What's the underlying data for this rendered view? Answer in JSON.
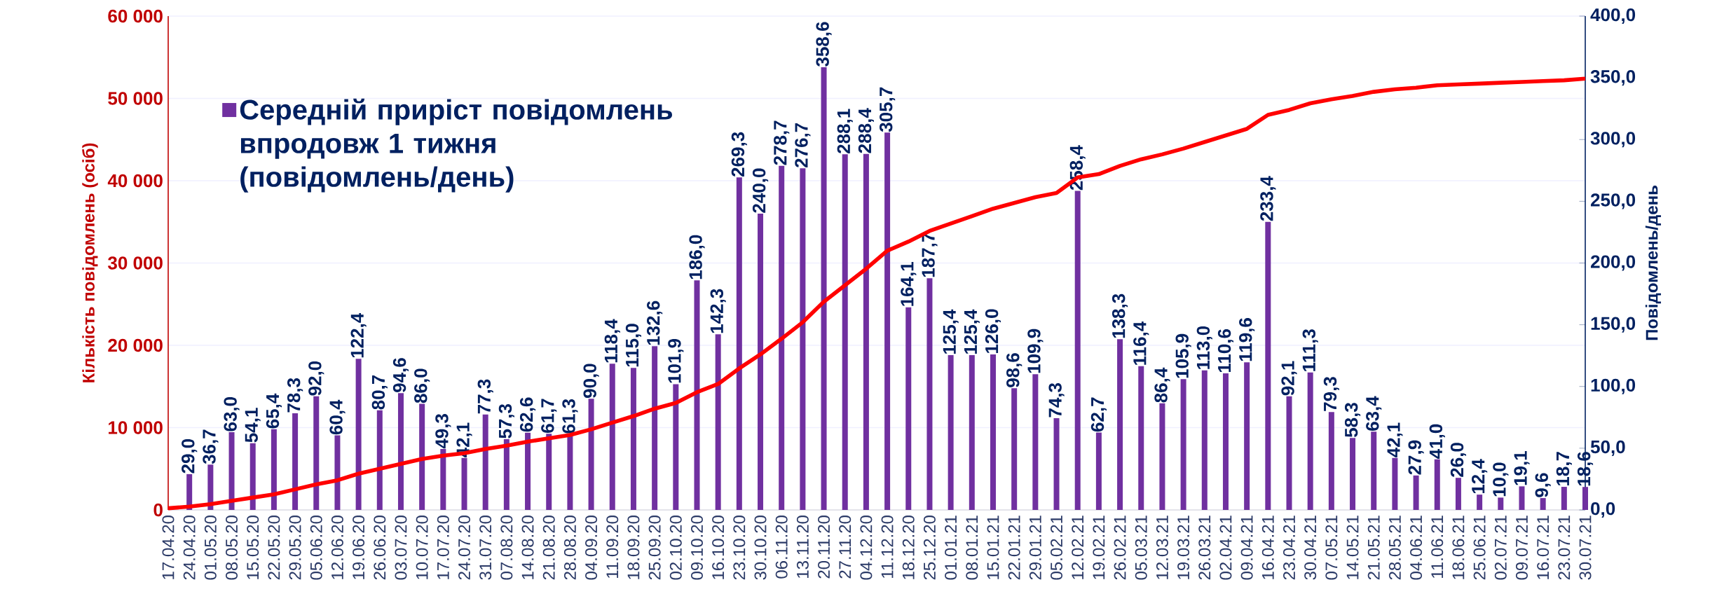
{
  "chart_data": {
    "type": "bar",
    "categories": [
      "17.04.20",
      "24.04.20",
      "01.05.20",
      "08.05.20",
      "15.05.20",
      "22.05.20",
      "29.05.20",
      "05.06.20",
      "12.06.20",
      "19.06.20",
      "26.06.20",
      "03.07.20",
      "10.07.20",
      "17.07.20",
      "24.07.20",
      "31.07.20",
      "07.08.20",
      "14.08.20",
      "21.08.20",
      "28.08.20",
      "04.09.20",
      "11.09.20",
      "18.09.20",
      "25.09.20",
      "02.10.20",
      "09.10.20",
      "16.10.20",
      "23.10.20",
      "30.10.20",
      "06.11.20",
      "13.11.20",
      "20.11.20",
      "27.11.20",
      "04.12.20",
      "11.12.20",
      "18.12.20",
      "25.12.20",
      "01.01.21",
      "08.01.21",
      "15.01.21",
      "22.01.21",
      "29.01.21",
      "05.02.21",
      "12.02.21",
      "19.02.21",
      "26.02.21",
      "05.03.21",
      "12.03.21",
      "19.03.21",
      "26.03.21",
      "02.04.21",
      "09.04.21",
      "16.04.21",
      "23.04.21",
      "30.04.21",
      "07.05.21",
      "14.05.21",
      "21.05.21",
      "28.05.21",
      "04.06.21",
      "11.06.21",
      "18.06.21",
      "25.06.21",
      "02.07.21",
      "09.07.21",
      "16.07.21",
      "23.07.21",
      "30.07.21"
    ],
    "series": [
      {
        "name": "**Середній приріст повідомлень впродовж 1 тижня (повідомлень/день)**",
        "axis": "y2",
        "color": "#7030a0",
        "values": [
          null,
          29.0,
          36.7,
          63.0,
          54.1,
          65.4,
          78.3,
          92.0,
          60.4,
          122.4,
          80.7,
          94.6,
          86.0,
          49.3,
          42.1,
          77.3,
          57.3,
          62.6,
          61.7,
          61.3,
          90.0,
          118.4,
          115.0,
          132.6,
          101.9,
          186.0,
          142.3,
          269.3,
          240.0,
          278.7,
          276.7,
          358.6,
          288.1,
          288.4,
          305.7,
          164.1,
          187.7,
          125.4,
          125.4,
          126.0,
          98.6,
          109.9,
          74.3,
          258.4,
          62.7,
          138.3,
          116.4,
          86.4,
          105.9,
          113.0,
          110.6,
          119.6,
          233.4,
          92.1,
          111.3,
          79.3,
          58.3,
          63.4,
          42.1,
          27.9,
          41.0,
          26.0,
          12.4,
          10.0,
          19.1,
          9.6,
          18.7,
          18.6
        ],
        "value_labels": [
          null,
          "29,0",
          "36,7",
          "63,0",
          "54,1",
          "65,4",
          "78,3",
          "92,0",
          "60,4",
          "122,4",
          "80,7",
          "94,6",
          "86,0",
          "49,3",
          "42,1",
          "77,3",
          "57,3",
          "62,6",
          "61,7",
          "61,3",
          "90,0",
          "118,4",
          "115,0",
          "132,6",
          "101,9",
          "186,0",
          "142,3",
          "269,3",
          "240,0",
          "278,7",
          "276,7",
          "358,6",
          "288,1",
          "288,4",
          "305,7",
          "164,1",
          "187,7",
          "125,4",
          "125,4",
          "126,0",
          "98,6",
          "109,9",
          "74,3",
          "258,4",
          "62,7",
          "138,3",
          "116,4",
          "86,4",
          "105,9",
          "113,0",
          "110,6",
          "119,6",
          "233,4",
          "92,1",
          "111,3",
          "79,3",
          "58,3",
          "63,4",
          "42,1",
          "27,9",
          "41,0",
          "26,0",
          "12,4",
          "10,0",
          "19,1",
          "9,6",
          "18,7",
          "18,6"
        ]
      },
      {
        "type": "line",
        "color": "#ff0000",
        "values": [
          200,
          400,
          700,
          1100,
          1500,
          1900,
          2500,
          3100,
          3600,
          4400,
          5000,
          5600,
          6200,
          6600,
          6900,
          7400,
          7800,
          8300,
          8700,
          9100,
          9800,
          10600,
          11400,
          12300,
          13000,
          14300,
          15300,
          17200,
          18900,
          20800,
          22800,
          25300,
          27300,
          29300,
          31500,
          32600,
          33900,
          34800,
          35700,
          36600,
          37300,
          38000,
          38500,
          40400,
          40800,
          41800,
          42600,
          43200,
          43900,
          44700,
          45500,
          46300,
          48000,
          48600,
          49400,
          49900,
          50300,
          50800,
          51100,
          51300,
          51600,
          51700,
          51800,
          51900,
          52000,
          52100,
          52200,
          52400
        ]
      }
    ],
    "ylabel": "Кількість повідомлень (осіб)",
    "y2label": "Повідомлень/день",
    "ylim": [
      0,
      60000
    ],
    "yticks": [
      0,
      {
        "value": 10000,
        "label": "10 000"
      },
      {
        "value": 20000,
        "label": "20 000"
      },
      {
        "value": 30000,
        "label": "30 000"
      },
      {
        "value": 40000,
        "label": "40 000"
      },
      {
        "value": 50000,
        "label": "50 000"
      },
      {
        "value": 60000,
        "label": "60 000"
      }
    ],
    "y2lim": [
      0,
      400
    ],
    "y2ticks": [
      {
        "value": 0,
        "label": "0,0"
      },
      {
        "value": 50,
        "label": "50,0"
      },
      {
        "value": 100,
        "label": "100,0"
      },
      {
        "value": 150,
        "label": "150,0"
      },
      {
        "value": 200,
        "label": "200,0"
      },
      {
        "value": 250,
        "label": "250,0"
      },
      {
        "value": 300,
        "label": "300,0"
      },
      {
        "value": 350,
        "label": "350,0"
      },
      {
        "value": 400,
        "label": "400,0"
      }
    ],
    "grid": "y",
    "legend": "top left"
  }
}
